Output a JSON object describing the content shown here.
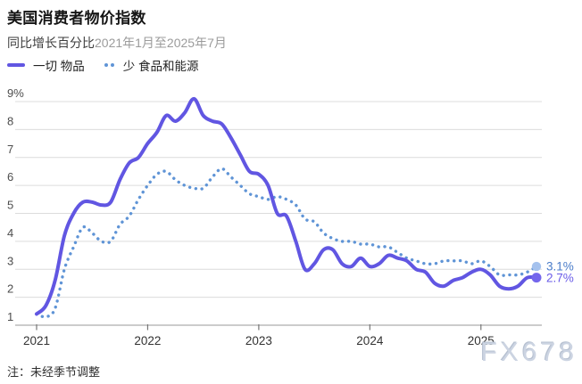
{
  "header": {
    "title": "美国消费者物价指数",
    "subtitle_label": "同比增长百分比",
    "subtitle_range": "2021年1月至2025年7月"
  },
  "legend": {
    "items": [
      {
        "label": "一切 物品",
        "style": "solid"
      },
      {
        "label": "少 食品和能源",
        "style": "dotted"
      }
    ]
  },
  "footer": {
    "note": "注：未经季节调整",
    "watermark": "FX678"
  },
  "colors": {
    "all_items_line": "#6156e2",
    "core_line": "#5f94d6",
    "all_items_end_dot": "#7466ec",
    "core_end_dot": "#a5c2ee",
    "all_items_value_label": "#6a5ce8",
    "core_value_label": "#4a7cc9",
    "grid": "#dcdcdc",
    "axis": "#999999",
    "tick": "#777777",
    "y_label": "#4d4d4d",
    "x_label": "#333333"
  },
  "chart_data": {
    "type": "line",
    "title": "美国消费者物价指数",
    "subtitle": "同比增长百分比 2021年1月至2025年7月",
    "x_unit": "month",
    "x_start": "2021-01",
    "x_end": "2025-07",
    "x_tick_labels": [
      "2021",
      "2022",
      "2023",
      "2024",
      "2025"
    ],
    "y_tick_labels": [
      "9%",
      "8",
      "7",
      "6",
      "5",
      "4",
      "3",
      "2",
      "1"
    ],
    "ylim": [
      1,
      9
    ],
    "grid": true,
    "legend_position": "top-left",
    "series": [
      {
        "name": "一切 物品",
        "style": "solid",
        "end_label": "2.7%",
        "values": [
          1.4,
          1.7,
          2.6,
          4.2,
          5.0,
          5.4,
          5.4,
          5.3,
          5.4,
          6.2,
          6.8,
          7.0,
          7.5,
          7.9,
          8.5,
          8.3,
          8.6,
          9.1,
          8.5,
          8.3,
          8.2,
          7.7,
          7.1,
          6.5,
          6.4,
          6.0,
          5.0,
          4.9,
          4.0,
          3.0,
          3.2,
          3.7,
          3.7,
          3.2,
          3.1,
          3.4,
          3.1,
          3.2,
          3.5,
          3.4,
          3.3,
          3.0,
          2.9,
          2.5,
          2.4,
          2.6,
          2.7,
          2.9,
          3.0,
          2.8,
          2.4,
          2.3,
          2.4,
          2.7,
          2.7
        ]
      },
      {
        "name": "少 食品和能源",
        "style": "dotted",
        "end_label": "3.1%",
        "values": [
          1.4,
          1.3,
          1.6,
          3.0,
          3.8,
          4.5,
          4.3,
          4.0,
          4.0,
          4.6,
          4.9,
          5.5,
          6.0,
          6.4,
          6.5,
          6.2,
          6.0,
          5.9,
          5.9,
          6.3,
          6.6,
          6.3,
          6.0,
          5.7,
          5.6,
          5.5,
          5.6,
          5.5,
          5.3,
          4.8,
          4.7,
          4.3,
          4.1,
          4.0,
          4.0,
          3.9,
          3.9,
          3.8,
          3.8,
          3.6,
          3.4,
          3.3,
          3.2,
          3.2,
          3.3,
          3.3,
          3.3,
          3.2,
          3.3,
          3.1,
          2.8,
          2.8,
          2.8,
          2.9,
          3.1
        ]
      }
    ]
  }
}
